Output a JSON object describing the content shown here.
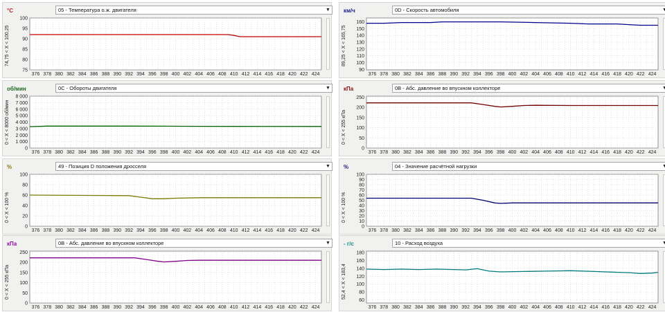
{
  "x_ticks": [
    "376",
    "378",
    "380",
    "382",
    "384",
    "386",
    "388",
    "390",
    "392",
    "394",
    "396",
    "398",
    "400",
    "402",
    "404",
    "406",
    "408",
    "410",
    "412",
    "414",
    "416",
    "418",
    "420",
    "422",
    "424"
  ],
  "panels": [
    {
      "unit": "°C",
      "unit_color": "#cc2020",
      "dropdown": "05 - Температура о.ж. двигателя",
      "range_label": "74,75  < X <  100,25",
      "series_color": "#c00000",
      "y_ticks": [
        "100",
        "95",
        "90",
        "85",
        "80",
        "75"
      ],
      "chart_data": {
        "type": "line",
        "ylim": [
          75,
          100
        ],
        "x": [
          375,
          405,
          409,
          410,
          411,
          425
        ],
        "y": [
          92,
          92,
          92,
          91.6,
          91,
          91
        ]
      }
    },
    {
      "unit": "км/ч",
      "unit_color": "#20208a",
      "dropdown": "0D - Скорость автомобиля",
      "range_label": "89,25  < X <  165,75",
      "series_color": "#000090",
      "y_ticks": [
        "160",
        "150",
        "140",
        "130",
        "120",
        "110",
        "100",
        "90"
      ],
      "chart_data": {
        "type": "line",
        "ylim": [
          89.25,
          165.75
        ],
        "x": [
          375,
          378,
          381,
          386,
          388,
          398,
          404,
          410,
          413,
          418,
          420,
          422,
          425
        ],
        "y": [
          158,
          158,
          159,
          159,
          160,
          160,
          159,
          158,
          157,
          157,
          156,
          155,
          155
        ]
      }
    },
    {
      "unit": "об/мин",
      "unit_color": "#1a6a1a",
      "dropdown": "0C - Обороты двигателя",
      "range_label": "0  < X <  8000  об/мин",
      "series_color": "#006000",
      "y_ticks": [
        "8 000",
        "7 000",
        "6 000",
        "5 000",
        "4 000",
        "3 000",
        "2 000",
        "1 000",
        "0"
      ],
      "chart_data": {
        "type": "line",
        "ylim": [
          0,
          8000
        ],
        "x": [
          375,
          378,
          390,
          398,
          404,
          410,
          425
        ],
        "y": [
          3300,
          3380,
          3380,
          3370,
          3350,
          3340,
          3330
        ]
      }
    },
    {
      "unit": "кПа",
      "unit_color": "#8a1010",
      "dropdown": "0B - Абс. давление во впускном коллекторе",
      "range_label": "0  < X <  255  кПа",
      "series_color": "#700000",
      "y_ticks": [
        "250",
        "200",
        "150",
        "100",
        "50",
        "0"
      ],
      "chart_data": {
        "type": "line",
        "ylim": [
          0,
          255
        ],
        "x": [
          375,
          393,
          395,
          397,
          398,
          400,
          402,
          404,
          410,
          425
        ],
        "y": [
          222,
          222,
          214,
          205,
          202,
          205,
          209,
          210,
          209,
          209
        ]
      }
    },
    {
      "unit": "%",
      "unit_color": "#8a7a10",
      "dropdown": "49 - Позиция D положения дросселя",
      "range_label": "0  < X <  100  %",
      "series_color": "#7a7a00",
      "y_ticks": [
        "100",
        "80",
        "60",
        "40",
        "20",
        "0"
      ],
      "chart_data": {
        "type": "line",
        "ylim": [
          0,
          100
        ],
        "x": [
          375,
          392,
          394,
          396,
          398,
          400,
          404,
          425
        ],
        "y": [
          60,
          59,
          56,
          53,
          53,
          54,
          55,
          55
        ]
      }
    },
    {
      "unit": "%",
      "unit_color": "#20208a",
      "dropdown": "04 - Значение расчётной нагрузки",
      "range_label": "0  < X <  100  %",
      "series_color": "#000070",
      "y_ticks": [
        "100",
        "90",
        "80",
        "70",
        "60",
        "50",
        "40",
        "30",
        "20",
        "10",
        "0"
      ],
      "chart_data": {
        "type": "line",
        "ylim": [
          0,
          100
        ],
        "x": [
          375,
          393,
          395,
          397,
          398,
          400,
          425
        ],
        "y": [
          54,
          54,
          50,
          45,
          44,
          45,
          45
        ]
      }
    },
    {
      "unit": "кПа",
      "unit_color": "#8a10a0",
      "dropdown": "0B - Абс. давление во впускном коллекторе",
      "range_label": "0  < X <  255  кПа",
      "series_color": "#80008a",
      "y_ticks": [
        "250",
        "200",
        "150",
        "100",
        "50",
        "0"
      ],
      "chart_data": {
        "type": "line",
        "ylim": [
          0,
          255
        ],
        "x": [
          375,
          393,
          395,
          397,
          398,
          400,
          402,
          404,
          410,
          425
        ],
        "y": [
          222,
          222,
          214,
          205,
          202,
          205,
          209,
          210,
          210,
          210
        ]
      }
    },
    {
      "unit": "- г/с",
      "unit_color": "#108a8a",
      "dropdown": "10 - Расход воздуха",
      "range_label": "52,4  < X <  183,4",
      "series_color": "#007a7a",
      "y_ticks": [
        "180",
        "160",
        "140",
        "120",
        "100",
        "80",
        "60"
      ],
      "chart_data": {
        "type": "line",
        "ylim": [
          52.4,
          183.4
        ],
        "x": [
          375,
          378,
          381,
          384,
          387,
          390,
          392,
          394,
          396,
          398,
          402,
          406,
          410,
          414,
          418,
          420,
          422,
          424,
          425
        ],
        "y": [
          138,
          137,
          138,
          137,
          138,
          137,
          136,
          139,
          133,
          131,
          132,
          133,
          134,
          132,
          130,
          129,
          127,
          128,
          130
        ]
      }
    }
  ]
}
